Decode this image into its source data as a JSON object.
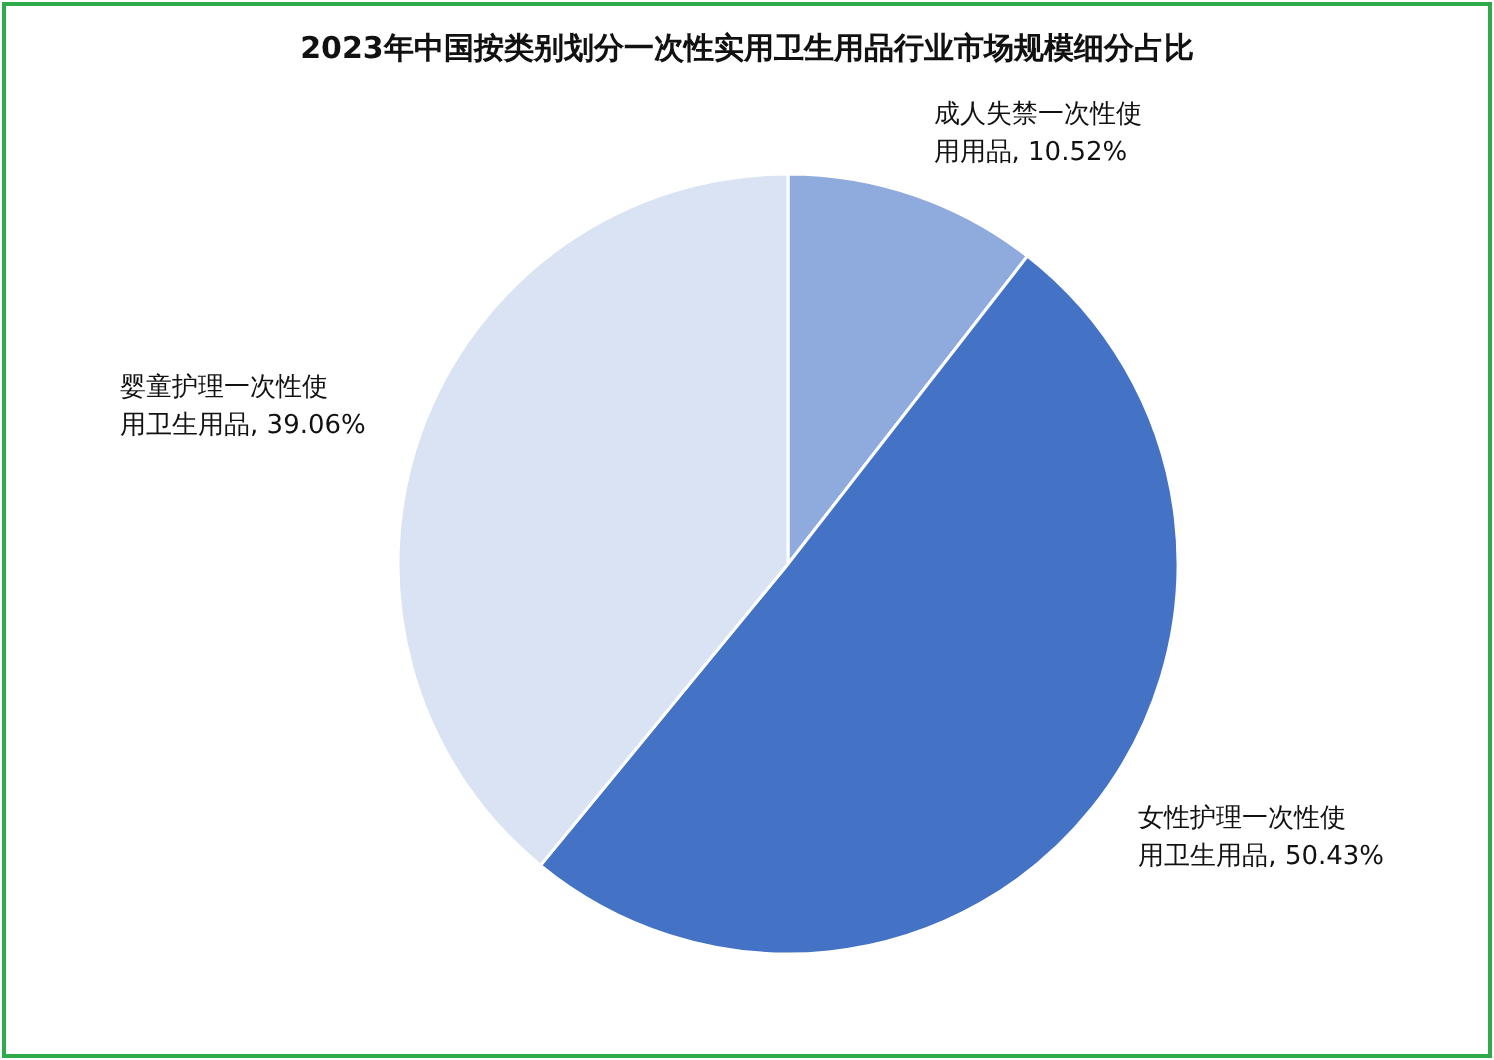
{
  "chart_data": {
    "type": "pie",
    "title": "2023年中国按类别划分一次性实用卫生用品行业市场规模细分占比",
    "categories": [
      "成人失禁一次性使用用品",
      "女性护理一次性使用卫生用品",
      "婴童护理一次性使用卫生用品"
    ],
    "values": [
      10.52,
      50.43,
      39.06
    ],
    "colors": [
      "#8faadc",
      "#4472c4",
      "#dae3f3"
    ],
    "value_labels": [
      ", 10.52%",
      ", 50.43%",
      ", 39.06%"
    ]
  }
}
